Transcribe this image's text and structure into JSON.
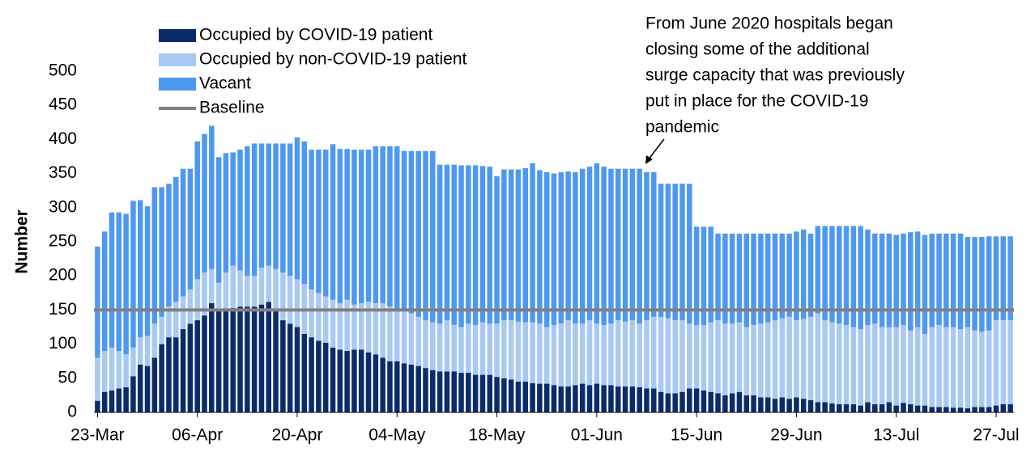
{
  "chart_data": {
    "type": "stacked_bar",
    "y_label": "Number",
    "categories": [
      "23-Mar",
      null,
      null,
      null,
      null,
      null,
      null,
      null,
      null,
      null,
      null,
      null,
      null,
      null,
      "06-Apr",
      null,
      null,
      null,
      null,
      null,
      null,
      null,
      null,
      null,
      null,
      null,
      null,
      null,
      "20-Apr",
      null,
      null,
      null,
      null,
      null,
      null,
      null,
      null,
      null,
      null,
      null,
      null,
      null,
      "04-May",
      null,
      null,
      null,
      null,
      null,
      null,
      null,
      null,
      null,
      null,
      null,
      null,
      null,
      "18-May",
      null,
      null,
      null,
      null,
      null,
      null,
      null,
      null,
      null,
      null,
      null,
      null,
      null,
      "01-Jun",
      null,
      null,
      null,
      null,
      null,
      null,
      null,
      null,
      null,
      null,
      null,
      null,
      null,
      "15-Jun",
      null,
      null,
      null,
      null,
      null,
      null,
      null,
      null,
      null,
      null,
      null,
      null,
      null,
      "29-Jun",
      null,
      null,
      null,
      null,
      null,
      null,
      null,
      null,
      null,
      null,
      null,
      null,
      null,
      "13-Jul",
      null,
      null,
      null,
      null,
      null,
      null,
      null,
      null,
      null,
      null,
      null,
      null,
      null,
      "27-Jul",
      null,
      null
    ],
    "series": [
      {
        "name": "Occupied by COVID-19 patient",
        "color": "#0b2c6b",
        "values": [
          17,
          30,
          32,
          35,
          37,
          53,
          70,
          68,
          80,
          100,
          110,
          110,
          122,
          130,
          135,
          142,
          160,
          150,
          152,
          153,
          155,
          155,
          155,
          158,
          162,
          150,
          135,
          130,
          125,
          115,
          110,
          105,
          102,
          95,
          92,
          90,
          92,
          92,
          88,
          85,
          80,
          75,
          75,
          72,
          70,
          68,
          65,
          62,
          60,
          60,
          60,
          58,
          58,
          55,
          55,
          55,
          52,
          50,
          48,
          45,
          45,
          43,
          42,
          42,
          40,
          38,
          38,
          40,
          42,
          40,
          42,
          40,
          40,
          38,
          38,
          38,
          37,
          35,
          35,
          30,
          28,
          28,
          30,
          35,
          35,
          32,
          30,
          28,
          25,
          28,
          30,
          25,
          25,
          22,
          22,
          20,
          22,
          20,
          22,
          20,
          18,
          15,
          15,
          13,
          12,
          12,
          12,
          10,
          15,
          12,
          12,
          15,
          10,
          14,
          12,
          10,
          10,
          8,
          8,
          8,
          7,
          7,
          6,
          8,
          8,
          8,
          10,
          12,
          12
        ]
      },
      {
        "name": "Occupied by non-COVID-19 patient",
        "color": "#a9c9f5",
        "values": [
          63,
          60,
          63,
          55,
          48,
          42,
          40,
          44,
          50,
          40,
          45,
          52,
          48,
          50,
          60,
          63,
          50,
          40,
          53,
          62,
          53,
          45,
          45,
          54,
          53,
          60,
          70,
          70,
          70,
          73,
          70,
          70,
          68,
          70,
          68,
          75,
          66,
          68,
          74,
          75,
          80,
          80,
          75,
          76,
          75,
          72,
          70,
          70,
          70,
          75,
          68,
          67,
          72,
          73,
          77,
          75,
          78,
          85,
          87,
          88,
          87,
          89,
          88,
          83,
          88,
          92,
          97,
          90,
          88,
          95,
          88,
          88,
          90,
          97,
          95,
          97,
          93,
          100,
          105,
          110,
          110,
          107,
          105,
          95,
          93,
          96,
          102,
          107,
          105,
          102,
          102,
          100,
          103,
          108,
          110,
          115,
          116,
          120,
          113,
          117,
          122,
          130,
          120,
          119,
          118,
          116,
          113,
          112,
          113,
          118,
          113,
          110,
          115,
          114,
          108,
          115,
          105,
          117,
          120,
          117,
          118,
          115,
          119,
          112,
          110,
          112,
          125,
          123,
          123
        ]
      },
      {
        "name": "Vacant",
        "color": "#4f98f0",
        "values": [
          163,
          175,
          198,
          203,
          206,
          215,
          201,
          190,
          200,
          190,
          180,
          183,
          187,
          177,
          202,
          203,
          210,
          184,
          175,
          166,
          177,
          190,
          194,
          182,
          179,
          184,
          189,
          194,
          208,
          209,
          205,
          210,
          215,
          228,
          226,
          221,
          227,
          225,
          223,
          230,
          230,
          235,
          240,
          235,
          238,
          243,
          248,
          251,
          233,
          228,
          235,
          237,
          232,
          234,
          229,
          230,
          216,
          221,
          221,
          223,
          226,
          233,
          225,
          227,
          222,
          222,
          218,
          222,
          227,
          225,
          235,
          232,
          227,
          222,
          224,
          222,
          227,
          217,
          212,
          195,
          197,
          200,
          200,
          205,
          144,
          144,
          140,
          127,
          132,
          132,
          130,
          137,
          134,
          132,
          130,
          127,
          124,
          122,
          130,
          131,
          122,
          128,
          138,
          141,
          143,
          145,
          148,
          151,
          140,
          132,
          137,
          137,
          135,
          134,
          144,
          140,
          145,
          137,
          134,
          137,
          137,
          140,
          132,
          137,
          139,
          138,
          123,
          123,
          123
        ]
      }
    ],
    "baseline": {
      "name": "Baseline",
      "value": 150,
      "color": "#808080"
    },
    "annotation": [
      "From June 2020 hospitals began",
      "closing some of the additional",
      "surge capacity that was previously",
      "put in place for the COVID-19",
      "pandemic"
    ],
    "ylim": [
      0,
      500
    ],
    "yticks": [
      0,
      50,
      100,
      150,
      200,
      250,
      300,
      350,
      400,
      450,
      500
    ],
    "legend": "top-left",
    "grid": false
  }
}
